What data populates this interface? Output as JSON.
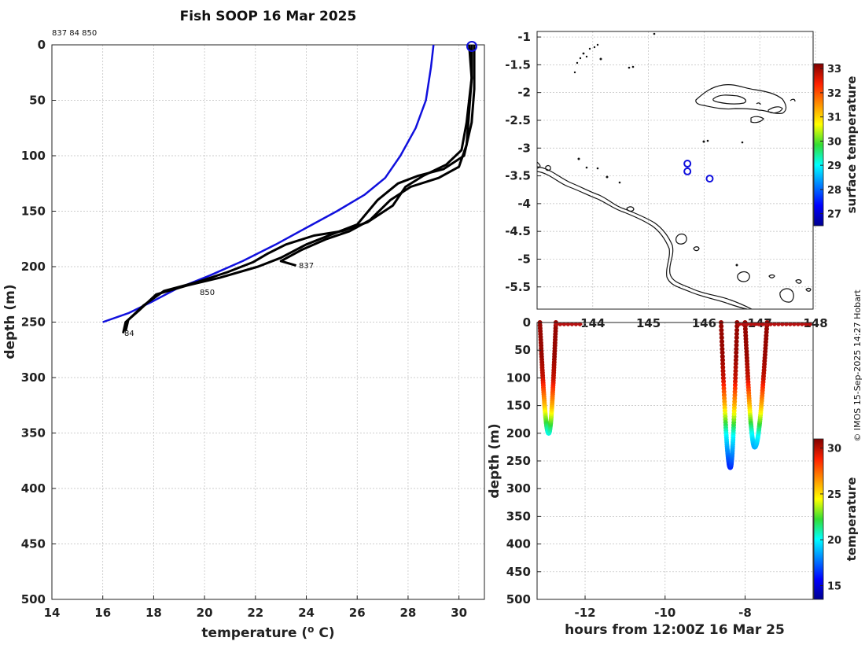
{
  "title": "Fish SOOP 16 Mar 2025",
  "cast_ids": "837 84 850",
  "credit": "© IMOS 15-Sep-2025 14:27 Hobart",
  "colors": {
    "climatology": "#1010dd",
    "profile": "#000000",
    "marker": "#1010dd"
  },
  "chart_data": [
    {
      "type": "line",
      "name": "profiles",
      "xlabel": "temperature (° C)",
      "ylabel": "depth (m)",
      "xlim": [
        14,
        31
      ],
      "ylim": [
        500,
        0
      ],
      "xticks": [
        "14",
        "16",
        "18",
        "20",
        "22",
        "24",
        "26",
        "28",
        "30"
      ],
      "yticks": [
        "0",
        "50",
        "100",
        "150",
        "200",
        "250",
        "300",
        "350",
        "400",
        "450",
        "500"
      ],
      "series": [
        {
          "name": "climatology",
          "color": "#1010dd",
          "points": [
            [
              29.0,
              0
            ],
            [
              28.9,
              20
            ],
            [
              28.7,
              50
            ],
            [
              28.3,
              75
            ],
            [
              27.7,
              100
            ],
            [
              27.1,
              120
            ],
            [
              26.3,
              135
            ],
            [
              25.2,
              150
            ],
            [
              24.0,
              165
            ],
            [
              22.8,
              180
            ],
            [
              21.5,
              195
            ],
            [
              20.2,
              208
            ],
            [
              18.9,
              220
            ],
            [
              17.9,
              232
            ],
            [
              17.0,
              242
            ],
            [
              16.0,
              250
            ]
          ]
        },
        {
          "name": "837",
          "color": "#000000",
          "points": [
            [
              30.5,
              0
            ],
            [
              30.5,
              30
            ],
            [
              30.4,
              60
            ],
            [
              30.3,
              90
            ],
            [
              30.0,
              110
            ],
            [
              29.2,
              120
            ],
            [
              28.1,
              128
            ],
            [
              27.3,
              140
            ],
            [
              26.5,
              158
            ],
            [
              25.7,
              168
            ],
            [
              24.8,
              175
            ],
            [
              23.8,
              185
            ],
            [
              23.0,
              195
            ],
            [
              23.6,
              199
            ]
          ]
        },
        {
          "name": "84",
          "color": "#000000",
          "points": [
            [
              30.6,
              0
            ],
            [
              30.6,
              40
            ],
            [
              30.5,
              70
            ],
            [
              30.2,
              100
            ],
            [
              29.4,
              112
            ],
            [
              28.4,
              118
            ],
            [
              27.6,
              125
            ],
            [
              26.8,
              140
            ],
            [
              26.0,
              162
            ],
            [
              25.1,
              170
            ],
            [
              24.0,
              180
            ],
            [
              23.0,
              192
            ],
            [
              22.1,
              200
            ],
            [
              20.6,
              210
            ],
            [
              19.3,
              217
            ],
            [
              18.1,
              225
            ],
            [
              17.4,
              240
            ],
            [
              16.9,
              250
            ],
            [
              16.8,
              260
            ]
          ]
        },
        {
          "name": "850",
          "color": "#000000",
          "points": [
            [
              30.4,
              0
            ],
            [
              30.5,
              30
            ],
            [
              30.3,
              70
            ],
            [
              30.1,
              95
            ],
            [
              29.5,
              108
            ],
            [
              28.6,
              118
            ],
            [
              27.9,
              128
            ],
            [
              27.4,
              145
            ],
            [
              26.4,
              160
            ],
            [
              25.4,
              168
            ],
            [
              24.3,
              172
            ],
            [
              23.2,
              180
            ],
            [
              22.5,
              188
            ],
            [
              21.9,
              196
            ],
            [
              20.9,
              205
            ],
            [
              19.7,
              214
            ],
            [
              18.4,
              222
            ],
            [
              17.6,
              235
            ],
            [
              17.0,
              248
            ],
            [
              16.9,
              258
            ]
          ]
        }
      ],
      "annotations": [
        "837",
        "850",
        "84"
      ]
    },
    {
      "type": "scatter",
      "name": "map",
      "colorbar_label": "surface temperature",
      "colorbar_range": [
        26.5,
        33.2
      ],
      "colorbar_ticks": [
        "27",
        "28",
        "29",
        "30",
        "31",
        "32",
        "33"
      ],
      "ylim": [
        -5.9,
        -0.9
      ],
      "yticks": [
        "-1",
        "-1.5",
        "-2",
        "-2.5",
        "-3",
        "-3.5",
        "-4",
        "-4.5",
        "-5",
        "-5.5"
      ],
      "xticks": [
        "144",
        "145",
        "146",
        "147",
        "148"
      ],
      "stations": [
        [
          145.7,
          -3.28
        ],
        [
          145.7,
          -3.42
        ],
        [
          146.1,
          -3.55
        ]
      ]
    },
    {
      "type": "scatter",
      "name": "time-depth",
      "xlabel": "hours from 12:00Z 16 Mar 25",
      "ylabel": "depth (m)",
      "xlim": [
        -13.2,
        -6.3
      ],
      "ylim": [
        500,
        0
      ],
      "xticks": [
        "-12",
        "-10",
        "-8"
      ],
      "yticks": [
        "0",
        "50",
        "100",
        "150",
        "200",
        "250",
        "300",
        "350",
        "400",
        "450",
        "500"
      ],
      "colorbar_label": "temperature",
      "colorbar_range": [
        13.5,
        31
      ],
      "colorbar_ticks": [
        "15",
        "20",
        "25",
        "30"
      ],
      "casts": [
        {
          "t_start": -13.13,
          "t_bottom": -12.91,
          "t_end": -12.73,
          "max_depth": 200
        },
        {
          "t_start": -8.6,
          "t_bottom": -8.37,
          "t_end": -8.2,
          "max_depth": 262
        },
        {
          "t_start": -8.0,
          "t_bottom": -7.76,
          "t_end": -7.45,
          "max_depth": 225
        }
      ],
      "surface_segments": [
        [
          -12.72,
          -12.07
        ],
        [
          -8.15,
          -6.38
        ]
      ]
    }
  ]
}
